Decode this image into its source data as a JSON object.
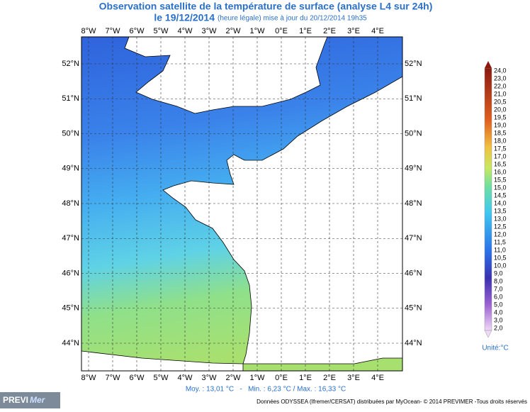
{
  "header": {
    "title": "Observation satellite de la température de surface (analyse L4 sur 24h)",
    "date": "le 19/12/2014",
    "update": "(heure légale) mise à jour du 20/12/2014 19h35"
  },
  "map": {
    "longitudes": [
      "8°W",
      "7°W",
      "6°W",
      "5°W",
      "4°W",
      "3°W",
      "2°W",
      "1°W",
      "0°E",
      "1°E",
      "2°E",
      "3°E",
      "4°E"
    ],
    "latitudes": [
      "52°N",
      "51°N",
      "50°N",
      "49°N",
      "48°N",
      "47°N",
      "46°N",
      "45°N",
      "44°N"
    ]
  },
  "colorbar": {
    "labels": [
      "24,0",
      "23,0",
      "22,0",
      "21,0",
      "20,5",
      "20,0",
      "19,5",
      "19,0",
      "18,5",
      "18,0",
      "17,5",
      "17,0",
      "16,5",
      "16,0",
      "15,5",
      "15,0",
      "14,5",
      "14,0",
      "13,5",
      "13,0",
      "12,5",
      "12,0",
      "11,5",
      "11,0",
      "10,5",
      "10,0",
      "9,0",
      "8,0",
      "7,0",
      "6,0",
      "5,0",
      "4,0",
      "3,0",
      "2,0"
    ],
    "unit": "Unité:°C"
  },
  "stats": "Moy. : 13,01 °C   -   Min. : 6,23 °C / Max. : 16,33 °C",
  "footer": {
    "logo_a": "PREVI",
    "logo_b": "Mer",
    "credits": "Données ODYSSEA (Ifremer/CERSAT) distribuées par MyOcean- © 2014 PREVIMER -Tous droits réservés"
  }
}
